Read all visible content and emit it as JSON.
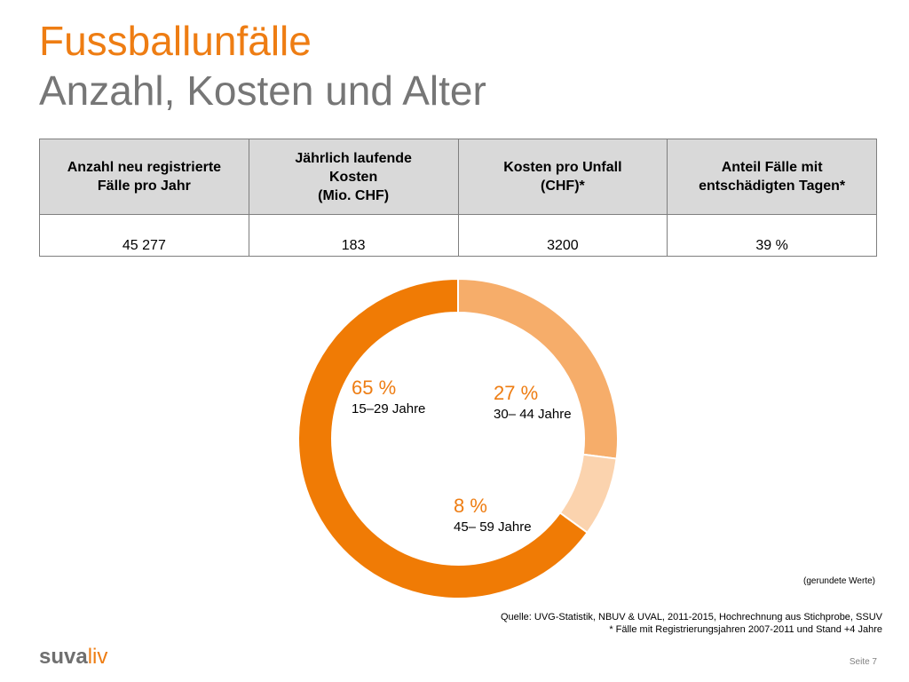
{
  "header": {
    "title": "Fussballunfälle",
    "subtitle": "Anzahl, Kosten und Alter"
  },
  "table": {
    "columns": [
      [
        "Anzahl neu registrierte",
        "Fälle pro Jahr"
      ],
      [
        "Jährlich laufende",
        "Kosten",
        "(Mio. CHF)"
      ],
      [
        "Kosten pro Unfall",
        "(CHF)*"
      ],
      [
        "Anteil Fälle mit",
        "entschädigten Tagen*"
      ]
    ],
    "values": [
      "45 277",
      "183",
      "3200",
      "39 %"
    ]
  },
  "colors": {
    "brand_orange": "#ee7d13",
    "title_gray": "#767676",
    "header_gray": "#d9d9d9",
    "seg_1": "#f07b05",
    "seg_2": "#f6ad6a",
    "seg_3": "#fbd3ae"
  },
  "chart_data": {
    "type": "pie",
    "variant": "donut",
    "start": "top",
    "direction": "clockwise",
    "slices": [
      {
        "label": "30– 44 Jahre",
        "value": 27,
        "pct_label": "27 %"
      },
      {
        "label": "45– 59 Jahre",
        "value": 8,
        "pct_label": "8 %"
      },
      {
        "label": "15–29 Jahre",
        "value": 65,
        "pct_label": "65 %"
      }
    ]
  },
  "footer": {
    "note": "(gerundete Werte)",
    "source_line1": "Quelle: UVG-Statistik, NBUV & UVAL, 2011-2015, Hochrechnung aus Stichprobe, SSUV",
    "source_line2": "* Fälle mit Registrierungsjahren 2007-2011 und Stand +4 Jahre",
    "logo_main": "suva",
    "logo_accent": "liv",
    "page": "Seite 7"
  }
}
